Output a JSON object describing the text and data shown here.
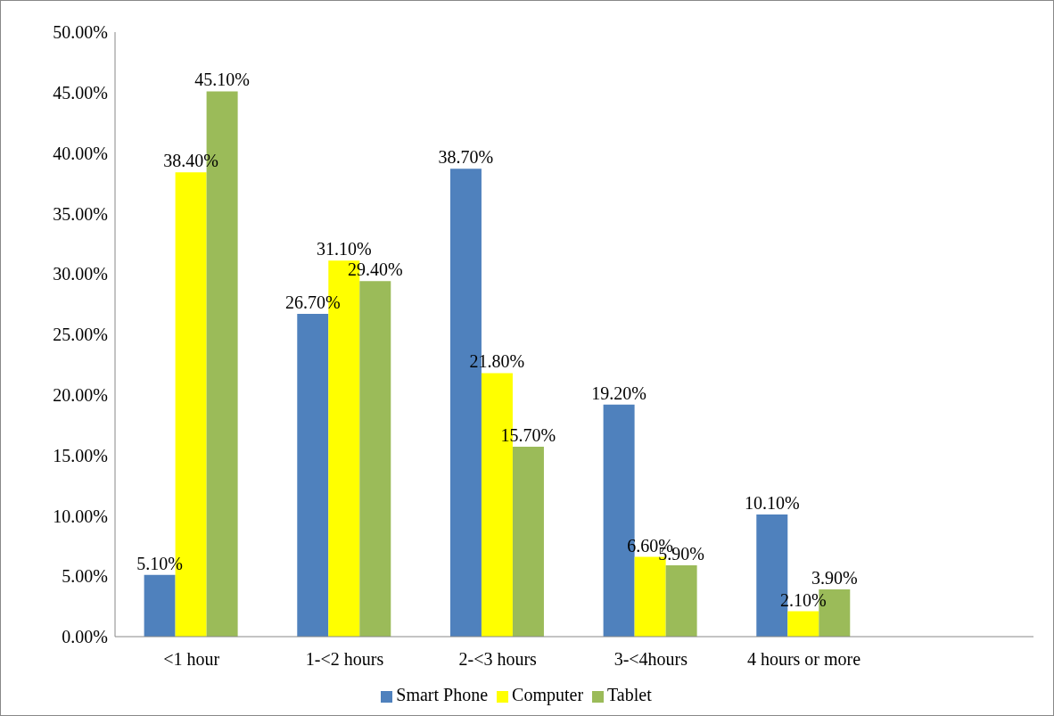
{
  "chart_data": {
    "type": "bar",
    "categories": [
      "<1 hour",
      "1-<2 hours",
      "2-<3 hours",
      "3-<4hours",
      "4 hours or more",
      null
    ],
    "series": [
      {
        "name": "Smart Phone",
        "color": "#4f81bd",
        "values": [
          5.1,
          26.7,
          38.7,
          19.2,
          10.1,
          null
        ],
        "value_labels": [
          "5.10%",
          "26.70%",
          "38.70%",
          "19.20%",
          "10.10%",
          null
        ]
      },
      {
        "name": "Computer",
        "color": "#ffff00",
        "values": [
          38.4,
          31.1,
          21.8,
          6.6,
          2.1,
          null
        ],
        "value_labels": [
          "38.40%",
          "31.10%",
          "21.80%",
          "6.60%",
          "2.10%",
          null
        ]
      },
      {
        "name": "Tablet",
        "color": "#9bbb59",
        "values": [
          45.1,
          29.4,
          15.7,
          5.9,
          3.9,
          null
        ],
        "value_labels": [
          "45.10%",
          "29.40%",
          "15.70%",
          "5.90%",
          "3.90%",
          null
        ]
      }
    ],
    "ylim": [
      0,
      50
    ],
    "yticks": [
      {
        "value": 0,
        "label": "0.00%"
      },
      {
        "value": 5,
        "label": "5.00%"
      },
      {
        "value": 10,
        "label": "10.00%"
      },
      {
        "value": 15,
        "label": "15.00%"
      },
      {
        "value": 20,
        "label": "20.00%"
      },
      {
        "value": 25,
        "label": "25.00%"
      },
      {
        "value": 30,
        "label": "30.00%"
      },
      {
        "value": 35,
        "label": "35.00%"
      },
      {
        "value": 40,
        "label": "40.00%"
      },
      {
        "value": 45,
        "label": "45.00%"
      },
      {
        "value": 50,
        "label": "50.00%"
      }
    ],
    "grid": false,
    "legend": "bottom"
  }
}
